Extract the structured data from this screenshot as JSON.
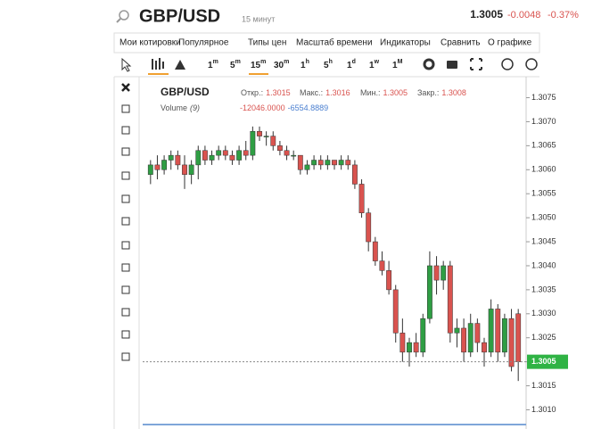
{
  "header": {
    "symbol": "GBP/USD",
    "interval": "15 минут",
    "price": "1.3005",
    "change": "-0.0048",
    "change_pct": "-0.37%"
  },
  "menu": [
    "Мои котировки",
    "Популярное",
    "Типы цен",
    "Масштаб времени",
    "Индикаторы",
    "Сравнить",
    "О графике"
  ],
  "intervals": [
    [
      "1",
      "m"
    ],
    [
      "5",
      "m"
    ],
    [
      "15",
      "m"
    ],
    [
      "30",
      "m"
    ],
    [
      "1",
      "h"
    ],
    [
      "5",
      "h"
    ],
    [
      "1",
      "d"
    ],
    [
      "1",
      "w"
    ],
    [
      "1",
      "M"
    ]
  ],
  "chart": {
    "type": "candlestick",
    "legend": {
      "symbol": "GBP/USD",
      "items": [
        [
          "Откр.:",
          "1.3015"
        ],
        [
          "Макс.:",
          "1.3016"
        ],
        [
          "Мин.:",
          "1.3005"
        ],
        [
          "Закр.:",
          "1.3008"
        ]
      ],
      "volume": "Volume",
      "volume_period": "(9)",
      "volume_values": [
        "-12046.0000",
        "-6554.8889"
      ]
    },
    "open": [
      1.3059,
      1.3061,
      1.306,
      1.3062,
      1.3063,
      1.3061,
      1.3059,
      1.3061,
      1.3064,
      1.3062,
      1.3063,
      1.3064,
      1.3063,
      1.3062,
      1.3064,
      1.3063,
      1.3068,
      1.3067,
      1.3067,
      1.3065,
      1.3064,
      1.3063,
      1.3063,
      1.306,
      1.3061,
      1.3062,
      1.3061,
      1.3062,
      1.3061,
      1.3062,
      1.3061,
      1.3057,
      1.3051,
      1.3045,
      1.3041,
      1.3039,
      1.3035,
      1.3026,
      1.3022,
      1.3024,
      1.3022,
      1.3029,
      1.304,
      1.3037,
      1.304,
      1.3026,
      1.3027,
      1.3022,
      1.3028,
      1.3024,
      1.3022,
      1.3031,
      1.3022,
      1.3029,
      1.303
    ],
    "high": [
      1.3062,
      1.3063,
      1.3063,
      1.3064,
      1.3064,
      1.3063,
      1.3062,
      1.3065,
      1.3065,
      1.3064,
      1.3065,
      1.3065,
      1.3064,
      1.3065,
      1.3066,
      1.3069,
      1.3069,
      1.3068,
      1.3068,
      1.3066,
      1.3065,
      1.3064,
      1.3063,
      1.3062,
      1.3063,
      1.3063,
      1.3063,
      1.3062,
      1.3063,
      1.3063,
      1.3062,
      1.3058,
      1.3052,
      1.3046,
      1.3043,
      1.3041,
      1.3036,
      1.3029,
      1.3025,
      1.3026,
      1.303,
      1.3043,
      1.3042,
      1.3041,
      1.3041,
      1.3029,
      1.3029,
      1.303,
      1.3029,
      1.3025,
      1.3033,
      1.3032,
      1.303,
      1.3031,
      1.3031
    ],
    "low": [
      1.3057,
      1.3058,
      1.3059,
      1.306,
      1.306,
      1.3056,
      1.3057,
      1.3058,
      1.3061,
      1.3061,
      1.3062,
      1.3062,
      1.3061,
      1.3061,
      1.3062,
      1.3062,
      1.3066,
      1.3065,
      1.3064,
      1.3063,
      1.3062,
      1.3062,
      1.3059,
      1.3059,
      1.306,
      1.306,
      1.306,
      1.306,
      1.306,
      1.306,
      1.3056,
      1.305,
      1.3043,
      1.304,
      1.3038,
      1.3034,
      1.3024,
      1.302,
      1.3019,
      1.3021,
      1.3021,
      1.3028,
      1.3034,
      1.3035,
      1.3024,
      1.3023,
      1.302,
      1.3021,
      1.3022,
      1.3019,
      1.3021,
      1.302,
      1.3021,
      1.3018,
      1.3016
    ],
    "close": [
      1.3061,
      1.306,
      1.3062,
      1.3063,
      1.3061,
      1.3059,
      1.3061,
      1.3064,
      1.3062,
      1.3063,
      1.3064,
      1.3063,
      1.3062,
      1.3064,
      1.3063,
      1.3068,
      1.3067,
      1.3067,
      1.3065,
      1.3064,
      1.3063,
      1.3063,
      1.306,
      1.3061,
      1.3062,
      1.3061,
      1.3062,
      1.3061,
      1.3062,
      1.3061,
      1.3057,
      1.3051,
      1.3045,
      1.3041,
      1.3039,
      1.3035,
      1.3026,
      1.3022,
      1.3024,
      1.3022,
      1.3029,
      1.304,
      1.3037,
      1.304,
      1.3026,
      1.3027,
      1.3022,
      1.3028,
      1.3024,
      1.3022,
      1.3031,
      1.3022,
      1.3029,
      1.3019,
      1.302
    ],
    "ylim": [
      1.3006,
      1.3079
    ],
    "yticks": [
      1.3075,
      {
        "value": 1.307,
        "label": "1.3070"
      },
      1.3065,
      {
        "value": 1.306,
        "label": "1.3060"
      },
      1.3055,
      {
        "value": 1.305,
        "label": "1.3050"
      },
      1.3045,
      {
        "value": 1.304,
        "label": "1.3040"
      },
      1.3035,
      {
        "value": 1.303,
        "label": "1.3030"
      },
      1.3025,
      {
        "value": 1.302,
        "label": "1.3020"
      },
      1.3015,
      {
        "value": 1.301,
        "label": "1.3010"
      }
    ],
    "last_price": 1.3005,
    "colors": {
      "up": "#2f9e44",
      "down": "#d9534f"
    }
  }
}
